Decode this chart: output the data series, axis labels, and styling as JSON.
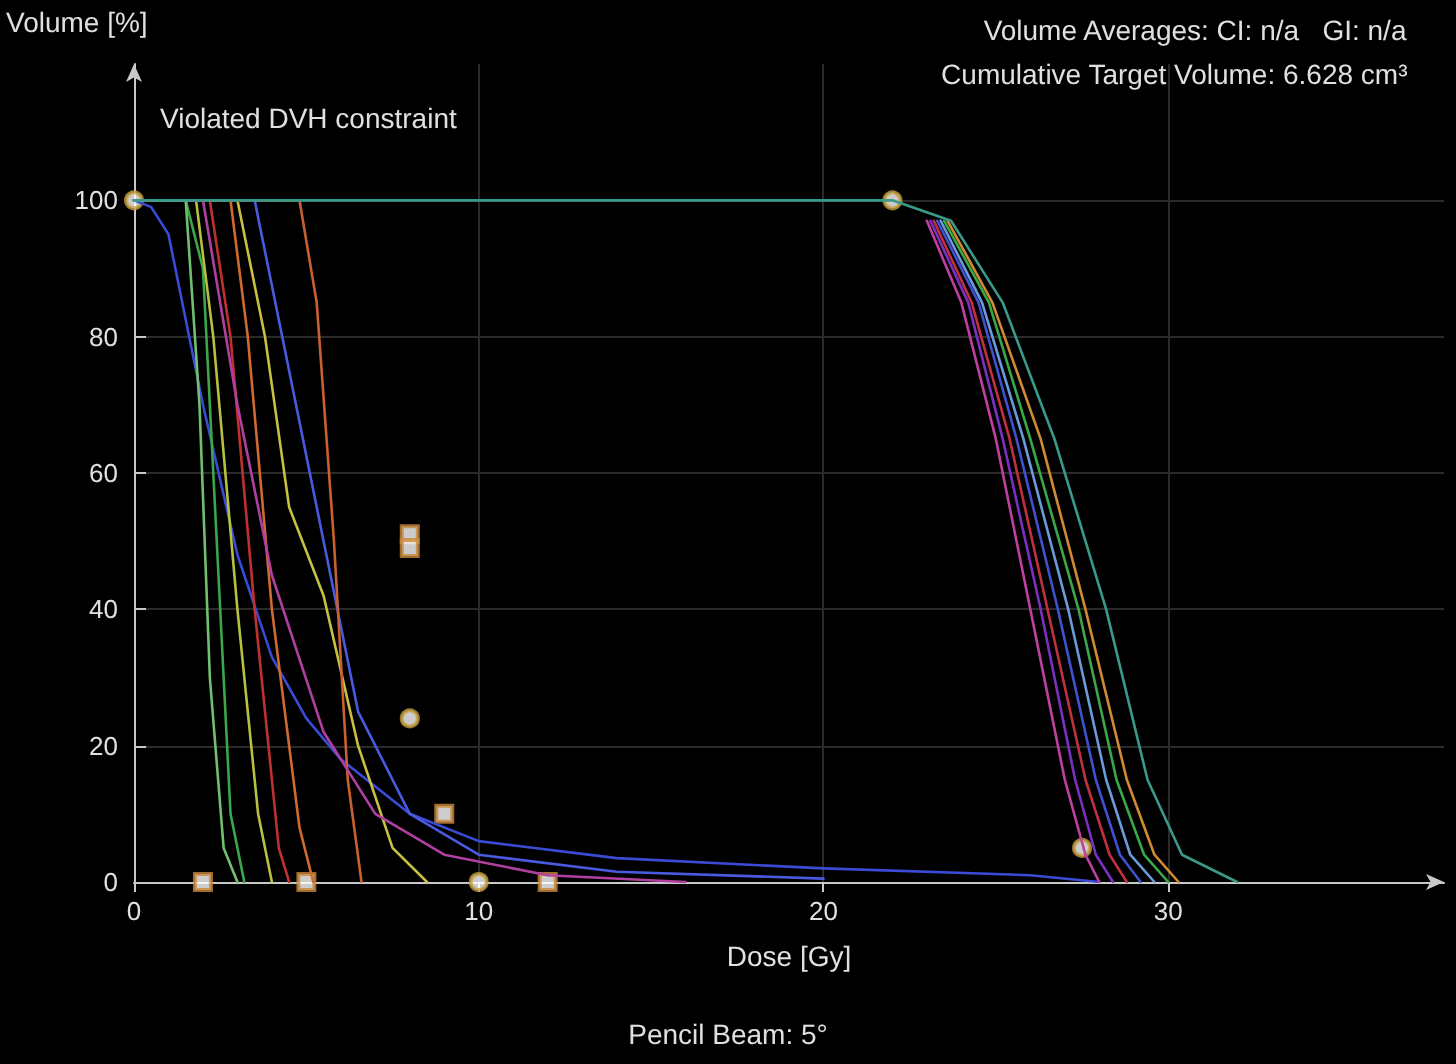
{
  "chart_data": {
    "type": "line",
    "xlabel": "Dose [Gy]",
    "ylabel": "Volume [%]",
    "annotations": [
      "Violated DVH constraint",
      "Volume Averages: CI: n/a   GI: n/a",
      "Cumulative Target Volume: 6.628 cm³",
      "Pencil Beam: 5°"
    ],
    "xlim": [
      0,
      38
    ],
    "xticks": [
      0,
      10,
      20,
      30
    ],
    "ylim": [
      0,
      120
    ],
    "yticks": [
      0,
      20,
      40,
      60,
      80,
      100
    ],
    "grid": true,
    "marker": "none",
    "line_style": "solid",
    "series": [
      {
        "color": "#3a4bd6",
        "x": [
          0,
          0.5,
          1,
          2,
          3,
          4,
          5,
          6,
          8,
          10,
          14,
          20,
          26,
          28
        ],
        "values": [
          100,
          99,
          95,
          70,
          48,
          33,
          24,
          18,
          10,
          6,
          3.5,
          2,
          1,
          0
        ]
      },
      {
        "color": "#3aa84a",
        "x": [
          0,
          1.5,
          2,
          2.4,
          2.8,
          3.2
        ],
        "values": [
          100,
          100,
          90,
          50,
          10,
          0
        ]
      },
      {
        "color": "#b8c040",
        "x": [
          0,
          1.8,
          2.3,
          3,
          3.6,
          4
        ],
        "values": [
          100,
          100,
          80,
          40,
          10,
          0
        ]
      },
      {
        "color": "#c03030",
        "x": [
          0,
          2.2,
          2.8,
          3.5,
          4.2,
          4.5
        ],
        "values": [
          100,
          100,
          80,
          40,
          5,
          0
        ]
      },
      {
        "color": "#d06a30",
        "x": [
          0,
          2.8,
          3.3,
          4,
          4.8,
          5.2
        ],
        "values": [
          100,
          100,
          80,
          40,
          8,
          0
        ]
      },
      {
        "color": "#c8c040",
        "x": [
          0,
          3,
          3.8,
          4.5,
          5.5,
          6.5,
          7.5,
          8.5
        ],
        "values": [
          100,
          100,
          80,
          55,
          42,
          20,
          5,
          0
        ]
      },
      {
        "color": "#4a5ae0",
        "x": [
          0,
          3.5,
          4.3,
          5.5,
          6.5,
          8,
          10,
          14,
          20
        ],
        "values": [
          100,
          100,
          80,
          50,
          25,
          10,
          4,
          1.5,
          0.5
        ]
      },
      {
        "color": "#c86030",
        "x": [
          0,
          4.8,
          5.3,
          5.8,
          6.2,
          6.6
        ],
        "values": [
          100,
          100,
          85,
          50,
          15,
          0
        ]
      },
      {
        "color": "#b040a0",
        "x": [
          0,
          2,
          3,
          4,
          5.5,
          7,
          9,
          12,
          16
        ],
        "values": [
          100,
          100,
          70,
          45,
          22,
          10,
          4,
          1,
          0
        ]
      },
      {
        "color": "#70c070",
        "x": [
          0,
          1.5,
          1.9,
          2.2,
          2.6,
          3
        ],
        "values": [
          100,
          100,
          70,
          30,
          5,
          0
        ]
      },
      {
        "color": "#c040a0",
        "x": [
          23,
          24,
          25,
          26,
          27,
          27.6,
          28
        ],
        "values": [
          97,
          85,
          65,
          40,
          15,
          4,
          0
        ]
      },
      {
        "color": "#7a30c0",
        "x": [
          23.1,
          24.2,
          25.2,
          26.3,
          27.3,
          27.9,
          28.4
        ],
        "values": [
          97,
          85,
          65,
          40,
          15,
          4,
          0
        ]
      },
      {
        "color": "#c03040",
        "x": [
          23.2,
          24.3,
          25.4,
          26.5,
          27.6,
          28.3,
          28.8
        ],
        "values": [
          97,
          85,
          65,
          40,
          15,
          4,
          0
        ]
      },
      {
        "color": "#4050d0",
        "x": [
          23.3,
          24.5,
          25.6,
          26.8,
          27.9,
          28.6,
          29.2
        ],
        "values": [
          97,
          85,
          65,
          40,
          15,
          4,
          0
        ]
      },
      {
        "color": "#6a9ad8",
        "x": [
          23.4,
          24.6,
          25.8,
          27.1,
          28.2,
          28.9,
          29.6
        ],
        "values": [
          97,
          85,
          65,
          40,
          15,
          4,
          0
        ]
      },
      {
        "color": "#3aa84a",
        "x": [
          23.5,
          24.8,
          26,
          27.4,
          28.5,
          29.3,
          30
        ],
        "values": [
          97,
          85,
          65,
          40,
          15,
          4,
          0
        ]
      },
      {
        "color": "#d08a30",
        "x": [
          23.6,
          24.9,
          26.3,
          27.6,
          28.8,
          29.6,
          30.3
        ],
        "values": [
          97,
          85,
          65,
          40,
          15,
          4,
          0
        ]
      },
      {
        "color": "#3a9a8a",
        "x": [
          0,
          22,
          23.7,
          25.2,
          26.7,
          28.2,
          29.4,
          30.4,
          32
        ],
        "values": [
          100,
          100,
          97,
          85,
          65,
          40,
          15,
          4,
          0
        ]
      },
      {
        "type": "scatter",
        "marker": "square",
        "color": "#c8883a",
        "x": [
          8,
          8,
          2,
          5,
          12,
          9
        ],
        "values": [
          51,
          49,
          0,
          0,
          0,
          10
        ]
      },
      {
        "type": "scatter",
        "marker": "circle",
        "color": "#c8a040",
        "x": [
          8,
          10,
          0,
          22,
          27.5
        ],
        "values": [
          24,
          0,
          100,
          100,
          5
        ]
      }
    ]
  }
}
